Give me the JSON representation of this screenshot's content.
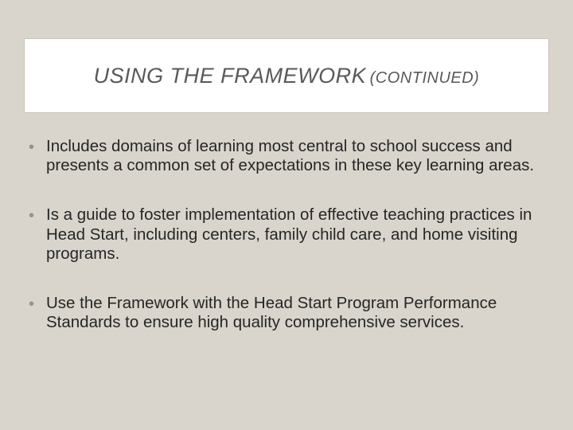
{
  "background_color": "#d9d5cc",
  "title_box": {
    "background_color": "#ffffff",
    "border_color": "#c9c4b8",
    "main": "USING THE FRAMEWORK",
    "sub": "(CONTINUED)",
    "text_color": "#595959",
    "font_style": "italic",
    "main_fontsize": 27,
    "sub_fontsize": 20
  },
  "bullets": {
    "dot_color": "#9a927e",
    "text_color": "#262626",
    "fontsize": 20.5,
    "items": [
      "Includes domains of learning most central to school success and presents a common set of expectations in these key learning areas.",
      "Is a guide to foster implementation of effective teaching practices in Head Start, including centers, family child care, and home visiting programs.",
      "Use the Framework with the Head Start Program Performance Standards to ensure high quality comprehensive services."
    ]
  }
}
